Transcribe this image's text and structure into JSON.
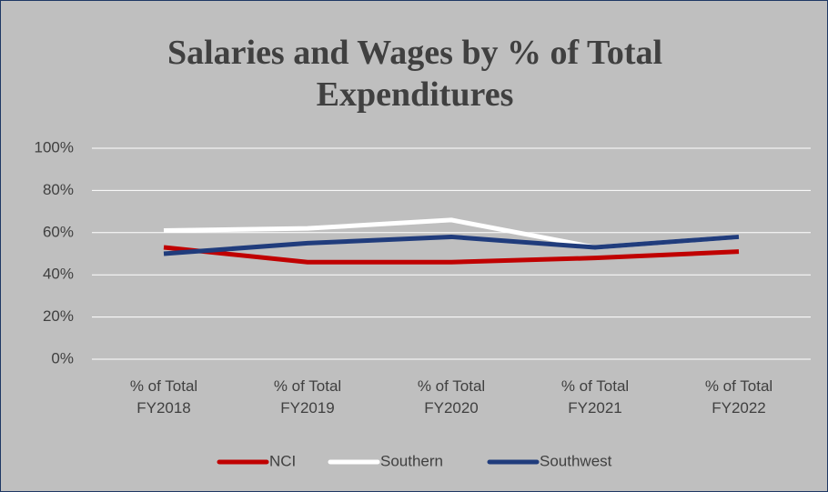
{
  "chart_data": {
    "type": "line",
    "title": "Salaries and Wages by % of Total Expenditures",
    "categories": [
      "% of Total FY2018",
      "% of Total FY2019",
      "% of Total FY2020",
      "% of Total FY2021",
      "% of Total FY2022"
    ],
    "series": [
      {
        "name": "NCI",
        "color": "#c00000",
        "values": [
          53,
          46,
          46,
          48,
          51
        ]
      },
      {
        "name": "Southern",
        "color": "#ffffff",
        "values": [
          61,
          62,
          66,
          53,
          58
        ]
      },
      {
        "name": "Southwest",
        "color": "#203c7c",
        "values": [
          50,
          55,
          58,
          53,
          58
        ]
      }
    ],
    "ylim": [
      0,
      100
    ],
    "yticks": [
      {
        "value": 0,
        "label": "0%"
      },
      {
        "value": 20,
        "label": "20%"
      },
      {
        "value": 40,
        "label": "40%"
      },
      {
        "value": 60,
        "label": "60%"
      },
      {
        "value": 80,
        "label": "80%"
      },
      {
        "value": 100,
        "label": "100%"
      }
    ],
    "grid": true,
    "legend": "bottom"
  }
}
